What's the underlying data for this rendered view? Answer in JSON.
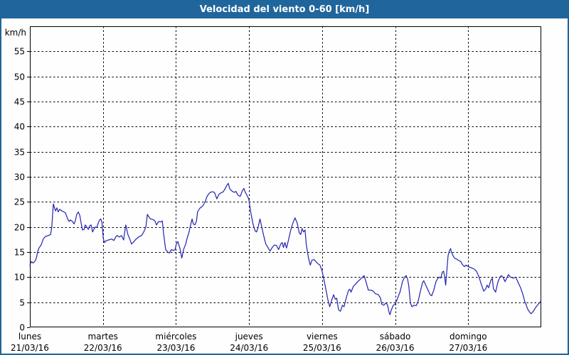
{
  "title": "Velocidad del viento 0-60 [km/h]",
  "colors": {
    "titlebar_bg": "#20669c",
    "title_text": "#ffffff",
    "frame_border": "#1d659b",
    "plot_background": "#fdfefd",
    "grid": "#000000",
    "axis": "#000000",
    "line": "#2222b2"
  },
  "chart_data": {
    "type": "line",
    "title": "Velocidad del viento 0-60 [km/h]",
    "xlabel": "",
    "ylabel": "km/h",
    "ylim": [
      0,
      60
    ],
    "xlim": [
      0,
      168
    ],
    "x_unit": "hours from Monday 00:00",
    "grid": true,
    "legend_position": "none",
    "yticks": [
      0,
      5,
      10,
      15,
      20,
      25,
      30,
      35,
      40,
      45,
      50,
      55
    ],
    "days": [
      {
        "name": "lunes",
        "date": "21/03/16"
      },
      {
        "name": "martes",
        "date": "22/03/16"
      },
      {
        "name": "miércoles",
        "date": "23/03/16"
      },
      {
        "name": "jueves",
        "date": "24/03/16"
      },
      {
        "name": "viernes",
        "date": "25/03/16"
      },
      {
        "name": "sábado",
        "date": "26/03/16"
      },
      {
        "name": "domingo",
        "date": "27/03/16"
      }
    ],
    "series": [
      {
        "name": "Velocidad del viento",
        "points": [
          [
            0,
            12.4
          ],
          [
            0.5,
            13.1
          ],
          [
            1.1,
            12.8
          ],
          [
            1.4,
            13
          ],
          [
            1.9,
            13.4
          ],
          [
            2.2,
            14
          ],
          [
            2.6,
            15.2
          ],
          [
            3,
            15.8
          ],
          [
            3.7,
            16.4
          ],
          [
            4.4,
            17.6
          ],
          [
            5.1,
            18.1
          ],
          [
            6.1,
            18.3
          ],
          [
            6.8,
            18.5
          ],
          [
            7.2,
            20
          ],
          [
            7.7,
            24.6
          ],
          [
            8.4,
            23.2
          ],
          [
            8.9,
            23.8
          ],
          [
            9.3,
            23
          ],
          [
            9.8,
            23.5
          ],
          [
            10.5,
            23.2
          ],
          [
            11.2,
            23
          ],
          [
            11.7,
            22.8
          ],
          [
            12.4,
            21.6
          ],
          [
            12.9,
            21.1
          ],
          [
            13.3,
            21.4
          ],
          [
            14,
            21.1
          ],
          [
            14.5,
            20.6
          ],
          [
            15,
            21.4
          ],
          [
            15.4,
            22.5
          ],
          [
            15.9,
            23
          ],
          [
            16.4,
            22.3
          ],
          [
            16.8,
            20.9
          ],
          [
            17.3,
            19.4
          ],
          [
            17.8,
            19.5
          ],
          [
            18.2,
            20.4
          ],
          [
            18.7,
            20
          ],
          [
            19.2,
            19.5
          ],
          [
            19.6,
            20.2
          ],
          [
            20.1,
            20.4
          ],
          [
            20.6,
            19
          ],
          [
            21,
            19.5
          ],
          [
            21.5,
            20
          ],
          [
            22,
            19.9
          ],
          [
            22.4,
            20.7
          ],
          [
            22.9,
            21.4
          ],
          [
            23.3,
            21.6
          ],
          [
            23.7,
            20.9
          ],
          [
            24.1,
            17.8
          ],
          [
            24.5,
            16.9
          ],
          [
            25.2,
            17.3
          ],
          [
            25.9,
            17.4
          ],
          [
            26.9,
            17.6
          ],
          [
            27.6,
            17.3
          ],
          [
            28.3,
            18.1
          ],
          [
            28.7,
            18.3
          ],
          [
            29.4,
            18
          ],
          [
            30.1,
            18.3
          ],
          [
            30.8,
            17.4
          ],
          [
            31.5,
            20.4
          ],
          [
            32.2,
            18.5
          ],
          [
            32.7,
            17.8
          ],
          [
            33.4,
            16.6
          ],
          [
            34.1,
            17
          ],
          [
            34.6,
            17.4
          ],
          [
            35.3,
            17.8
          ],
          [
            36,
            18.1
          ],
          [
            36.7,
            18.3
          ],
          [
            37.4,
            19
          ],
          [
            38.1,
            20
          ],
          [
            38.6,
            22.5
          ],
          [
            39.3,
            21.8
          ],
          [
            39.7,
            21.6
          ],
          [
            40.4,
            21.5
          ],
          [
            41.1,
            21.2
          ],
          [
            41.6,
            20.4
          ],
          [
            42.3,
            21.1
          ],
          [
            43,
            21
          ],
          [
            43.5,
            21.2
          ],
          [
            43.9,
            18.8
          ],
          [
            44.6,
            15.5
          ],
          [
            45.3,
            15
          ],
          [
            45.8,
            14.8
          ],
          [
            46.5,
            15.5
          ],
          [
            47.2,
            15.3
          ],
          [
            47.7,
            15.5
          ],
          [
            48.1,
            16.6
          ],
          [
            48.6,
            17.1
          ],
          [
            49.3,
            15.7
          ],
          [
            49.9,
            13.8
          ],
          [
            50.5,
            15.5
          ],
          [
            51.2,
            16.6
          ],
          [
            51.6,
            17.6
          ],
          [
            52.3,
            19
          ],
          [
            52.8,
            20.4
          ],
          [
            53.3,
            21.6
          ],
          [
            53.7,
            20.6
          ],
          [
            54.2,
            20.4
          ],
          [
            54.7,
            21.1
          ],
          [
            55.1,
            23
          ],
          [
            55.8,
            23.7
          ],
          [
            56.8,
            24.2
          ],
          [
            57.5,
            24.9
          ],
          [
            58.2,
            26.1
          ],
          [
            58.9,
            26.7
          ],
          [
            59.6,
            27
          ],
          [
            60.3,
            27
          ],
          [
            60.7,
            26.8
          ],
          [
            61.4,
            25.6
          ],
          [
            62.1,
            26.5
          ],
          [
            62.8,
            26.8
          ],
          [
            63.5,
            27
          ],
          [
            64.2,
            27.7
          ],
          [
            64.7,
            28.3
          ],
          [
            65.2,
            28.7
          ],
          [
            65.6,
            27.7
          ],
          [
            66.1,
            27.3
          ],
          [
            66.8,
            27
          ],
          [
            67.2,
            26.9
          ],
          [
            67.7,
            27.1
          ],
          [
            68.4,
            26.3
          ],
          [
            69.1,
            26.1
          ],
          [
            69.8,
            27.2
          ],
          [
            70.3,
            27.7
          ],
          [
            70.7,
            27
          ],
          [
            71.4,
            26.2
          ],
          [
            71.9,
            25.6
          ],
          [
            72.6,
            22.8
          ],
          [
            73.3,
            20.6
          ],
          [
            74,
            19.2
          ],
          [
            74.5,
            19
          ],
          [
            75,
            20
          ],
          [
            75.6,
            21.6
          ],
          [
            76.1,
            20.2
          ],
          [
            76.8,
            18.3
          ],
          [
            77.5,
            16.6
          ],
          [
            78.2,
            15.9
          ],
          [
            78.9,
            15.2
          ],
          [
            79.6,
            15.9
          ],
          [
            80.3,
            16.4
          ],
          [
            81,
            16.3
          ],
          [
            81.7,
            15.5
          ],
          [
            82.4,
            16.6
          ],
          [
            82.9,
            16.9
          ],
          [
            83.3,
            15.9
          ],
          [
            83.8,
            16.9
          ],
          [
            84.3,
            15.8
          ],
          [
            85,
            17.5
          ],
          [
            85.7,
            19.4
          ],
          [
            86.4,
            20.8
          ],
          [
            87.1,
            21.8
          ],
          [
            87.8,
            20.8
          ],
          [
            88.5,
            18.8
          ],
          [
            89,
            18.5
          ],
          [
            89.4,
            19.7
          ],
          [
            89.9,
            19
          ],
          [
            90.4,
            19.4
          ],
          [
            90.8,
            16.5
          ],
          [
            91.5,
            13.9
          ],
          [
            92.1,
            12.4
          ],
          [
            92.7,
            13.4
          ],
          [
            93.4,
            13.5
          ],
          [
            94.1,
            13
          ],
          [
            94.8,
            12.6
          ],
          [
            95.3,
            12.4
          ],
          [
            96,
            11.2
          ],
          [
            96.5,
            9.8
          ],
          [
            97.2,
            7.7
          ],
          [
            97.9,
            5.5
          ],
          [
            98.5,
            4.1
          ],
          [
            99.1,
            5.3
          ],
          [
            99.8,
            6.5
          ],
          [
            100.3,
            5.6
          ],
          [
            100.8,
            5.8
          ],
          [
            101.4,
            3.5
          ],
          [
            102,
            3.2
          ],
          [
            102.7,
            4.4
          ],
          [
            103.2,
            4.1
          ],
          [
            103.9,
            5.8
          ],
          [
            104.7,
            7.4
          ],
          [
            105.1,
            7.6
          ],
          [
            105.5,
            7
          ],
          [
            106.3,
            8.2
          ],
          [
            107,
            8.6
          ],
          [
            107.7,
            9.1
          ],
          [
            108.6,
            9.6
          ],
          [
            109.3,
            10
          ],
          [
            109.8,
            10.3
          ],
          [
            110.5,
            8.9
          ],
          [
            111.2,
            7.4
          ],
          [
            112.1,
            7.4
          ],
          [
            112.8,
            7.2
          ],
          [
            113.5,
            6.7
          ],
          [
            114.5,
            6.5
          ],
          [
            115.2,
            5.8
          ],
          [
            115.6,
            4.6
          ],
          [
            116.3,
            4.4
          ],
          [
            117,
            4.9
          ],
          [
            117.5,
            4.4
          ],
          [
            118,
            3
          ],
          [
            118.3,
            2.5
          ],
          [
            118.7,
            3.4
          ],
          [
            119.4,
            4.4
          ],
          [
            120,
            4.6
          ],
          [
            120.8,
            5.8
          ],
          [
            121.7,
            7.2
          ],
          [
            122.4,
            9.1
          ],
          [
            123.1,
            10
          ],
          [
            123.6,
            10.3
          ],
          [
            124.1,
            9.6
          ],
          [
            124.5,
            8.2
          ],
          [
            125,
            4.9
          ],
          [
            125.5,
            4.1
          ],
          [
            126.2,
            4.4
          ],
          [
            126.9,
            4.3
          ],
          [
            127.6,
            5.3
          ],
          [
            128.3,
            7.2
          ],
          [
            129,
            8.9
          ],
          [
            129.4,
            9.3
          ],
          [
            129.9,
            8.6
          ],
          [
            130.6,
            7.7
          ],
          [
            131.5,
            6.5
          ],
          [
            132,
            6.3
          ],
          [
            132.7,
            7.4
          ],
          [
            133.4,
            9.1
          ],
          [
            134.1,
            9.8
          ],
          [
            134.6,
            10
          ],
          [
            135,
            9.8
          ],
          [
            135.5,
            11
          ],
          [
            135.9,
            11.2
          ],
          [
            136.2,
            10.3
          ],
          [
            136.6,
            8.4
          ],
          [
            136.9,
            10.7
          ],
          [
            137.4,
            14.3
          ],
          [
            137.8,
            15.2
          ],
          [
            138.2,
            15.7
          ],
          [
            138.5,
            15
          ],
          [
            139,
            14.3
          ],
          [
            139.5,
            13.8
          ],
          [
            140.2,
            13.6
          ],
          [
            140.9,
            13.3
          ],
          [
            141.6,
            13.1
          ],
          [
            142,
            12.6
          ],
          [
            142.7,
            12.1
          ],
          [
            143.3,
            12.4
          ],
          [
            144,
            12.1
          ],
          [
            144.9,
            11.9
          ],
          [
            146,
            11.6
          ],
          [
            146.7,
            11.2
          ],
          [
            147.4,
            10.3
          ],
          [
            148.4,
            8.4
          ],
          [
            149.1,
            7.2
          ],
          [
            149.8,
            7.7
          ],
          [
            150.2,
            8.4
          ],
          [
            150.7,
            7.9
          ],
          [
            151.4,
            9.3
          ],
          [
            151.9,
            9.8
          ],
          [
            152.3,
            7.7
          ],
          [
            153,
            7
          ],
          [
            153.7,
            8.9
          ],
          [
            154.4,
            10
          ],
          [
            154.9,
            10.3
          ],
          [
            155.4,
            10
          ],
          [
            156.1,
            9.1
          ],
          [
            156.8,
            10
          ],
          [
            157.2,
            10.5
          ],
          [
            157.9,
            10
          ],
          [
            158.9,
            9.8
          ],
          [
            159.6,
            10
          ],
          [
            160.3,
            9.1
          ],
          [
            161.2,
            7.9
          ],
          [
            161.9,
            6.7
          ],
          [
            162.6,
            5.1
          ],
          [
            163.1,
            4.4
          ],
          [
            163.5,
            3.7
          ],
          [
            164.2,
            3
          ],
          [
            164.7,
            2.7
          ],
          [
            165.4,
            3.2
          ],
          [
            166.1,
            3.9
          ],
          [
            167,
            4.6
          ],
          [
            167.7,
            5.1
          ]
        ]
      }
    ]
  }
}
